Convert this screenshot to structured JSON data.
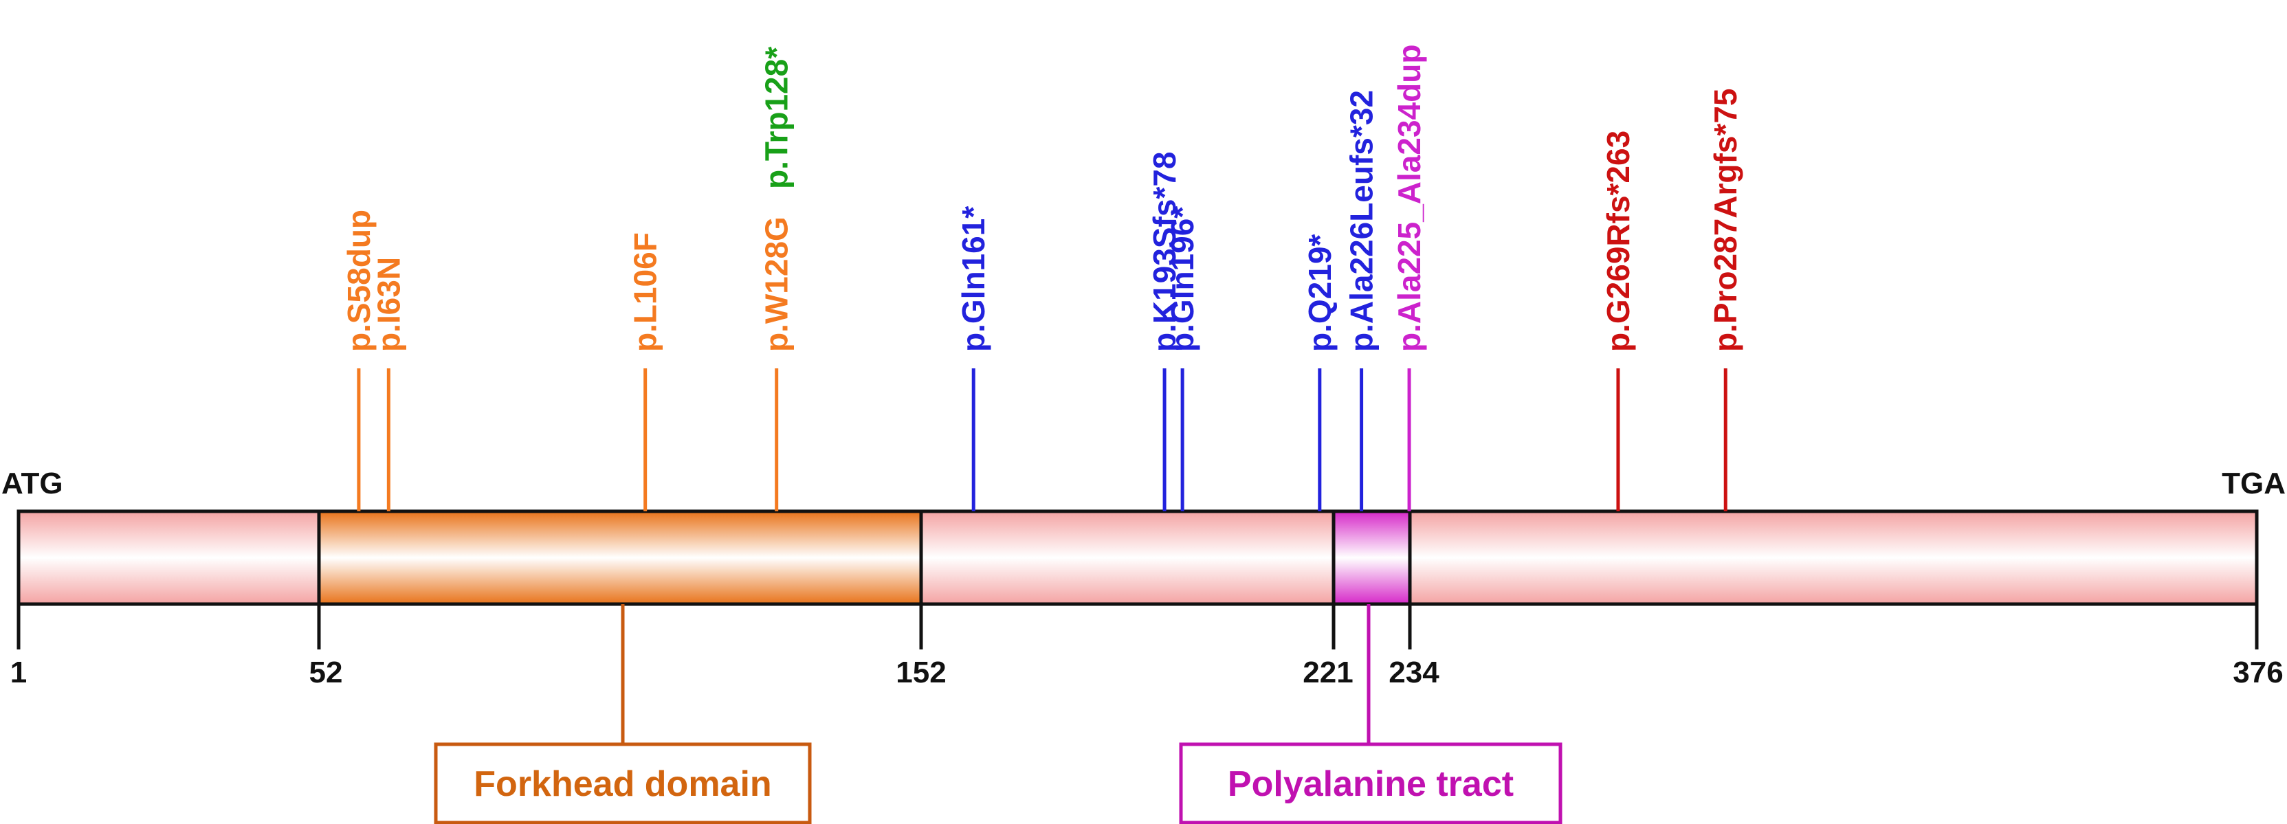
{
  "protein": {
    "start_codon": "ATG",
    "stop_codon": "TGA",
    "length": 376
  },
  "positions": [
    "1",
    "52",
    "152",
    "221",
    "234",
    "376"
  ],
  "domains": [
    {
      "name": "Forkhead domain",
      "start": 52,
      "end": 152,
      "color": "#e8731a",
      "border": "#c85a10"
    },
    {
      "name": "Polyalanine tract",
      "start": 221,
      "end": 234,
      "color": "#d629c8",
      "border": "#c011b0"
    }
  ],
  "backbone_color": "#f4a9a9",
  "mutations": [
    {
      "label": "p.S58dup",
      "pos": 58,
      "color": "#f47a20"
    },
    {
      "label": "p.I63N",
      "pos": 63,
      "color": "#f47a20"
    },
    {
      "label": "p.L106F",
      "pos": 106,
      "color": "#f47a20"
    },
    {
      "label": "p.W128G",
      "pos": 128,
      "color": "#f47a20",
      "label2": "p.Trp128*",
      "color2": "#18a018"
    },
    {
      "label": "p.Gln161*",
      "pos": 161,
      "color": "#2222dd"
    },
    {
      "label": "p.K193Sfs*78",
      "pos": 193,
      "color": "#2222dd"
    },
    {
      "label": "p.Gln196*",
      "pos": 196,
      "color": "#2222dd"
    },
    {
      "label": "p.Q219*",
      "pos": 219,
      "color": "#2222dd"
    },
    {
      "label": "p.Ala226Leufs*32",
      "pos": 226,
      "color": "#2222dd"
    },
    {
      "label": "p.Ala225_Ala234dup",
      "pos": 234,
      "color": "#cc22cc"
    },
    {
      "label": "p.G269Rfs*263",
      "pos": 269,
      "color": "#cc1111"
    },
    {
      "label": "p.Pro287Argfs*75",
      "pos": 287,
      "color": "#cc1111"
    }
  ]
}
